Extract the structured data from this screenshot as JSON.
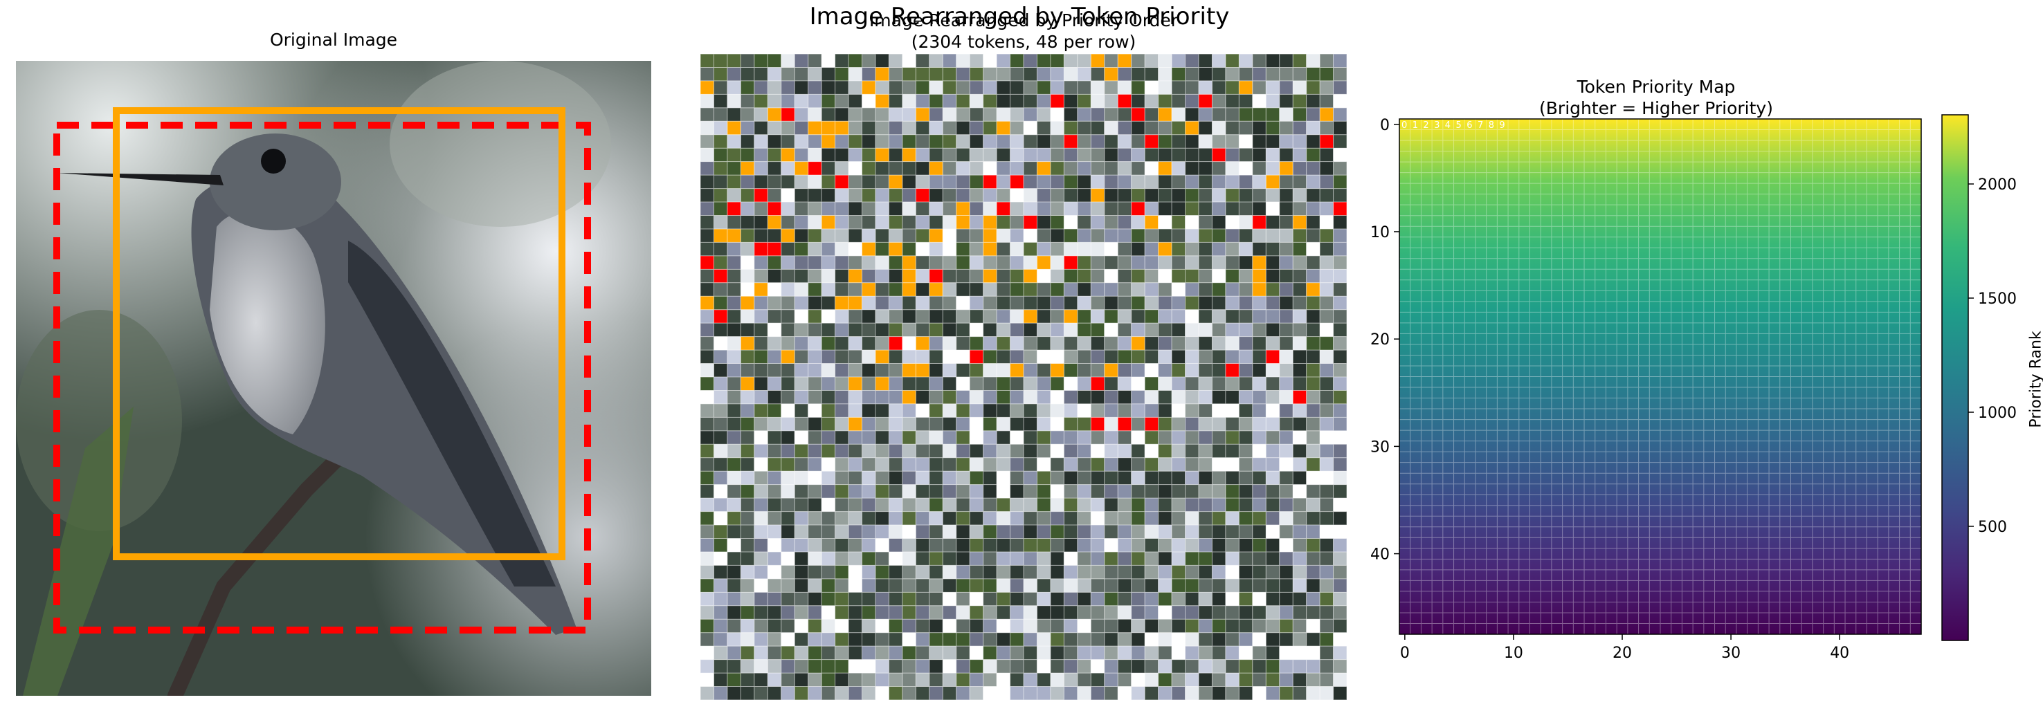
{
  "suptitle": "Image Rearranged by Token Priority",
  "panels": {
    "original": {
      "title": "Original Image",
      "boxes": [
        {
          "name": "solid-box",
          "color": "#FFA500",
          "style": "solid"
        },
        {
          "name": "dashed-box",
          "color": "#FF0000",
          "style": "dashed"
        }
      ]
    },
    "rearranged": {
      "title_line1": "Image Rearranged by Priority Order",
      "title_line2": "(2304 tokens, 48 per row)"
    },
    "priority_map": {
      "title_line1": "Token Priority Map",
      "title_line2": "(Brighter = Higher Priority)",
      "corner_labels": [
        "0",
        "1",
        "2",
        "3",
        "4",
        "5",
        "6",
        "7",
        "8",
        "9"
      ],
      "colorbar": {
        "label": "Priority Rank",
        "ticks": [
          "500",
          "1000",
          "1500",
          "2000"
        ],
        "tick_values": [
          500,
          1000,
          1500,
          2000
        ],
        "range": [
          0,
          2303
        ],
        "colormap": "viridis"
      }
    }
  },
  "chart_data": [
    {
      "type": "heatmap",
      "title": "Token Priority Map\n(Brighter = Higher Priority)",
      "grid": [
        48,
        48
      ],
      "xlim": [
        -0.5,
        47.5
      ],
      "ylim": [
        47.5,
        -0.5
      ],
      "xticks": [
        0,
        10,
        20,
        30,
        40
      ],
      "yticks": [
        0,
        10,
        20,
        30,
        40
      ],
      "values_rule": "value = 2303 - (row*48 + col)",
      "colorbar_label": "Priority Rank",
      "colorbar_ticks": [
        500,
        1000,
        1500,
        2000
      ]
    }
  ]
}
